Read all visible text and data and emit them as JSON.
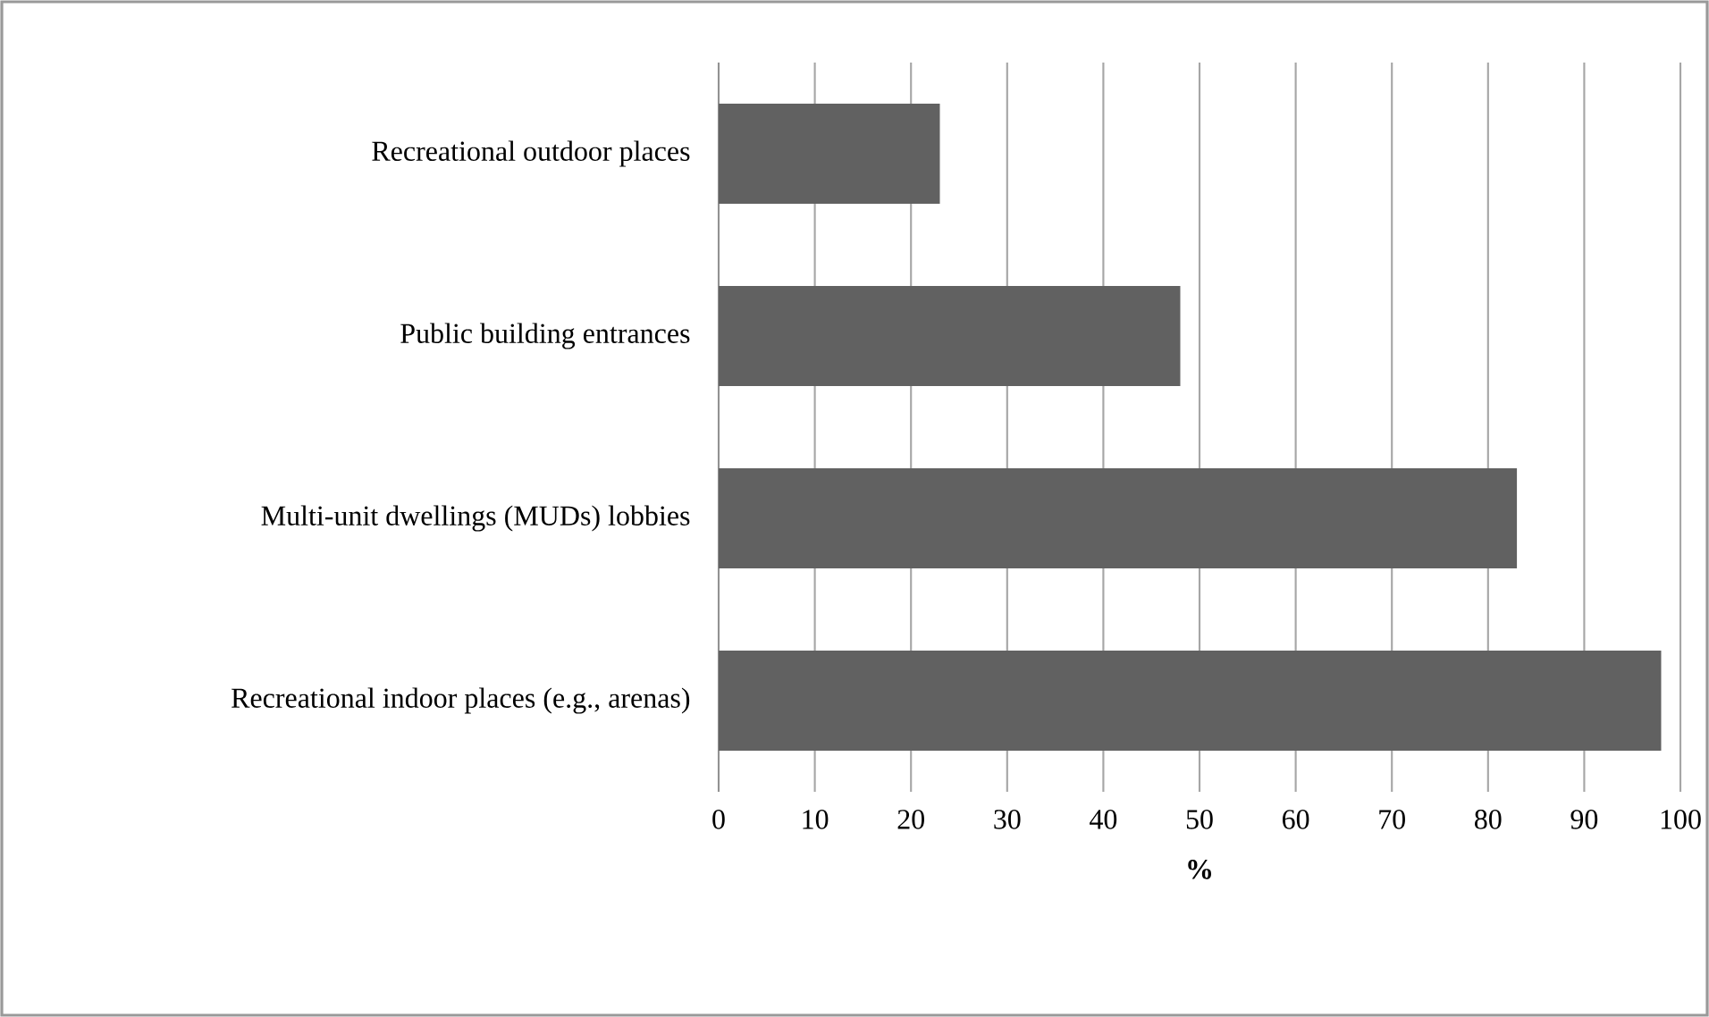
{
  "chart_data": {
    "type": "bar",
    "orientation": "horizontal",
    "categories": [
      "Recreational outdoor places",
      "Public building entrances",
      "Multi-unit dwellings (MUDs) lobbies",
      "Recreational indoor places (e.g., arenas)"
    ],
    "values": [
      23,
      48,
      83,
      98
    ],
    "color": "#616161",
    "xlim": [
      0,
      100
    ],
    "xticks": [
      0,
      10,
      20,
      30,
      40,
      50,
      60,
      70,
      80,
      90,
      100
    ],
    "xlabel": "%",
    "grid": "x"
  }
}
